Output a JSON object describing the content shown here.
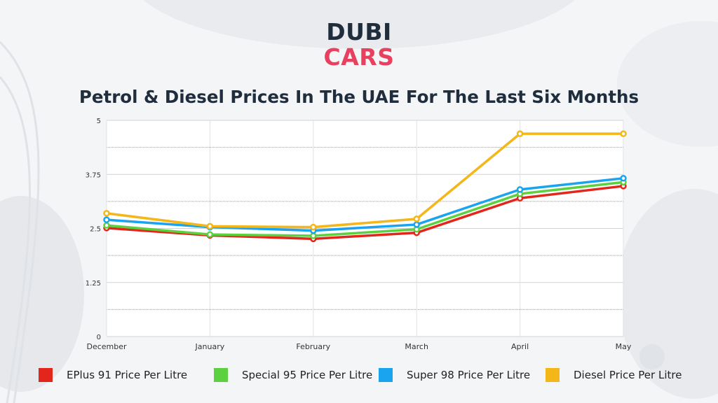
{
  "logo": {
    "line1": "DUBI",
    "line2": "CARS",
    "colors": {
      "line1": "#1f2d3d",
      "line2": "#e8415f"
    }
  },
  "chart_data": {
    "type": "line",
    "title": "Petrol & Diesel Prices In The UAE For The Last Six Months",
    "categories": [
      "December",
      "January",
      "February",
      "March",
      "April",
      "May"
    ],
    "ylim": [
      0,
      5
    ],
    "yticks": [
      "0",
      "1.25",
      "2.5",
      "3.75",
      "5"
    ],
    "grid": true,
    "legend_position": "bottom",
    "series": [
      {
        "name": "EPlus 91 Price Per Litre",
        "color": "#e3261b",
        "values": [
          2.51,
          2.34,
          2.26,
          2.4,
          3.2,
          3.48
        ]
      },
      {
        "name": "Special 95 Price Per Litre",
        "color": "#5cd13f",
        "values": [
          2.57,
          2.36,
          2.33,
          2.48,
          3.3,
          3.57
        ]
      },
      {
        "name": "Super 98 Price Per Litre",
        "color": "#1aa3ef",
        "values": [
          2.7,
          2.53,
          2.45,
          2.59,
          3.4,
          3.66
        ]
      },
      {
        "name": "Diesel Price Per Litre",
        "color": "#f4b71a",
        "values": [
          2.85,
          2.55,
          2.53,
          2.72,
          4.69,
          4.69
        ]
      }
    ]
  }
}
